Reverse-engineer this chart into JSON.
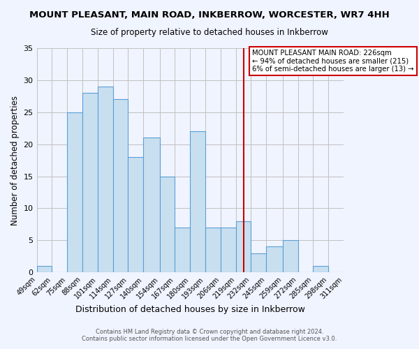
{
  "title": "MOUNT PLEASANT, MAIN ROAD, INKBERROW, WORCESTER, WR7 4HH",
  "subtitle": "Size of property relative to detached houses in Inkberrow",
  "xlabel": "Distribution of detached houses by size in Inkberrow",
  "ylabel": "Number of detached properties",
  "bar_color": "#c8dff0",
  "bar_edge_color": "#5a9fd4",
  "grid_color": "#c0c0c0",
  "background_color": "#f0f4ff",
  "bins": [
    49,
    62,
    75,
    88,
    101,
    114,
    127,
    140,
    154,
    167,
    180,
    193,
    206,
    219,
    232,
    245,
    259,
    272,
    285,
    298,
    311
  ],
  "counts": [
    1,
    0,
    25,
    28,
    29,
    27,
    18,
    21,
    15,
    7,
    22,
    7,
    7,
    8,
    3,
    4,
    5,
    0,
    1,
    0
  ],
  "vline_x": 226,
  "vline_color": "#cc0000",
  "annotation_title": "MOUNT PLEASANT MAIN ROAD: 226sqm",
  "annotation_line1": "← 94% of detached houses are smaller (215)",
  "annotation_line2": "6% of semi-detached houses are larger (13) →",
  "annotation_box_color": "#ffffff",
  "annotation_border_color": "#cc0000",
  "ylim": [
    0,
    35
  ],
  "yticks": [
    0,
    5,
    10,
    15,
    20,
    25,
    30,
    35
  ],
  "tick_labels": [
    "49sqm",
    "62sqm",
    "75sqm",
    "88sqm",
    "101sqm",
    "114sqm",
    "127sqm",
    "140sqm",
    "154sqm",
    "167sqm",
    "180sqm",
    "193sqm",
    "206sqm",
    "219sqm",
    "232sqm",
    "245sqm",
    "259sqm",
    "272sqm",
    "285sqm",
    "298sqm",
    "311sqm"
  ],
  "footer1": "Contains HM Land Registry data © Crown copyright and database right 2024.",
  "footer2": "Contains public sector information licensed under the Open Government Licence v3.0."
}
